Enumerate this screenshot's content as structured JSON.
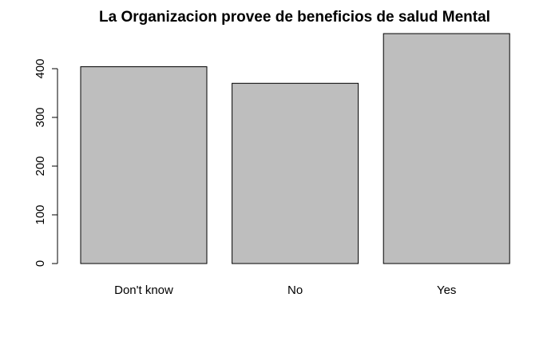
{
  "chart_data": {
    "type": "bar",
    "title": "La Organizacion provee de beneficios de salud Mental",
    "xlabel": "",
    "ylabel": "",
    "categories": [
      "Don't know",
      "No",
      "Yes"
    ],
    "values": [
      404,
      370,
      472
    ],
    "yticks": [
      "0",
      "100",
      "200",
      "300",
      "400"
    ],
    "ylim": [
      0,
      480
    ],
    "grid": false,
    "colors": {
      "bar_fill": "#bebebe",
      "bar_stroke": "#000000",
      "axis": "#000000",
      "background": "#ffffff"
    }
  }
}
